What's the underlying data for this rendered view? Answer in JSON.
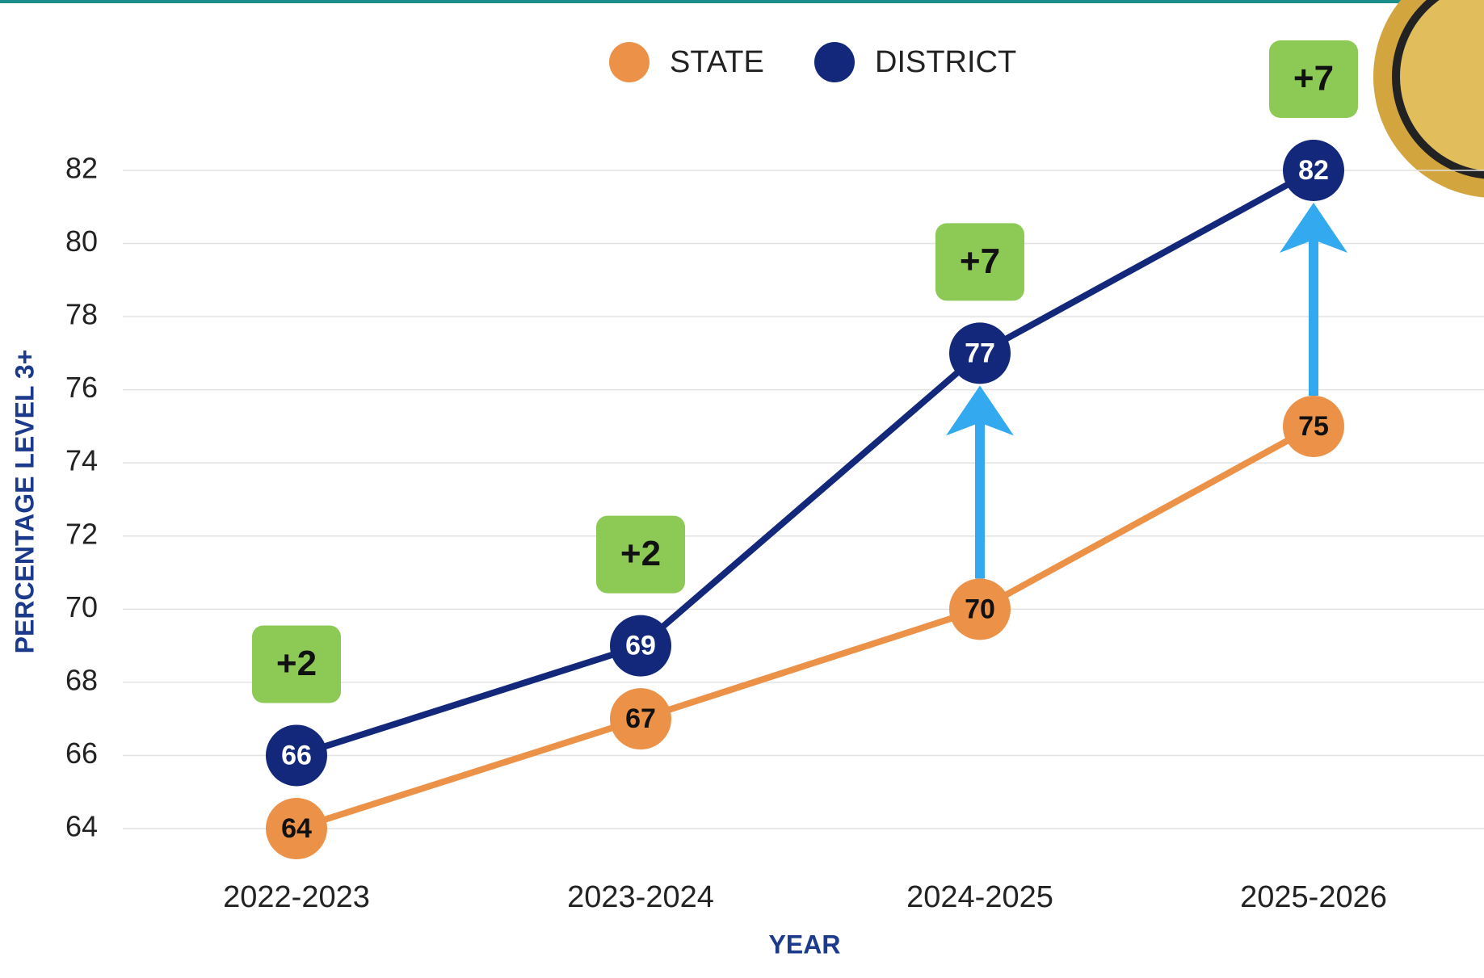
{
  "chart_data": {
    "type": "line",
    "y_label": "PERCENTAGE LEVEL 3+",
    "x_label": "YEAR",
    "categories": [
      "2022-2023",
      "2023-2024",
      "2024-2025",
      "2025-2026"
    ],
    "series": [
      {
        "name": "STATE",
        "color": "#ec9148",
        "values": [
          64,
          67,
          70,
          75
        ]
      },
      {
        "name": "DISTRICT",
        "color": "#13287a",
        "values": [
          66,
          69,
          77,
          82
        ]
      }
    ],
    "annotations": [
      "+2",
      "+2",
      "+7",
      "+7"
    ],
    "ylim": [
      64,
      82
    ],
    "yticks": [
      64,
      66,
      68,
      70,
      72,
      74,
      76,
      78,
      80,
      82
    ],
    "grid": true,
    "legend": "top"
  }
}
